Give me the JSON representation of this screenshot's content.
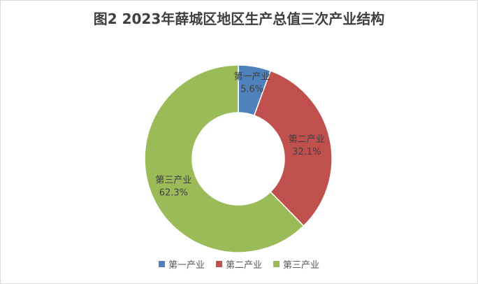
{
  "chart_data": {
    "type": "pie",
    "title": "图2 2023年薛城区地区生产总值三次产业结构",
    "categories": [
      "第一产业",
      "第二产业",
      "第三产业"
    ],
    "values": [
      5.6,
      32.1,
      62.3
    ],
    "value_labels": [
      "5.6%",
      "32.1%",
      "62.3%"
    ],
    "colors": [
      "#4f81bd",
      "#c0504d",
      "#9bbb59"
    ],
    "donut": true,
    "legend": "bottom"
  }
}
